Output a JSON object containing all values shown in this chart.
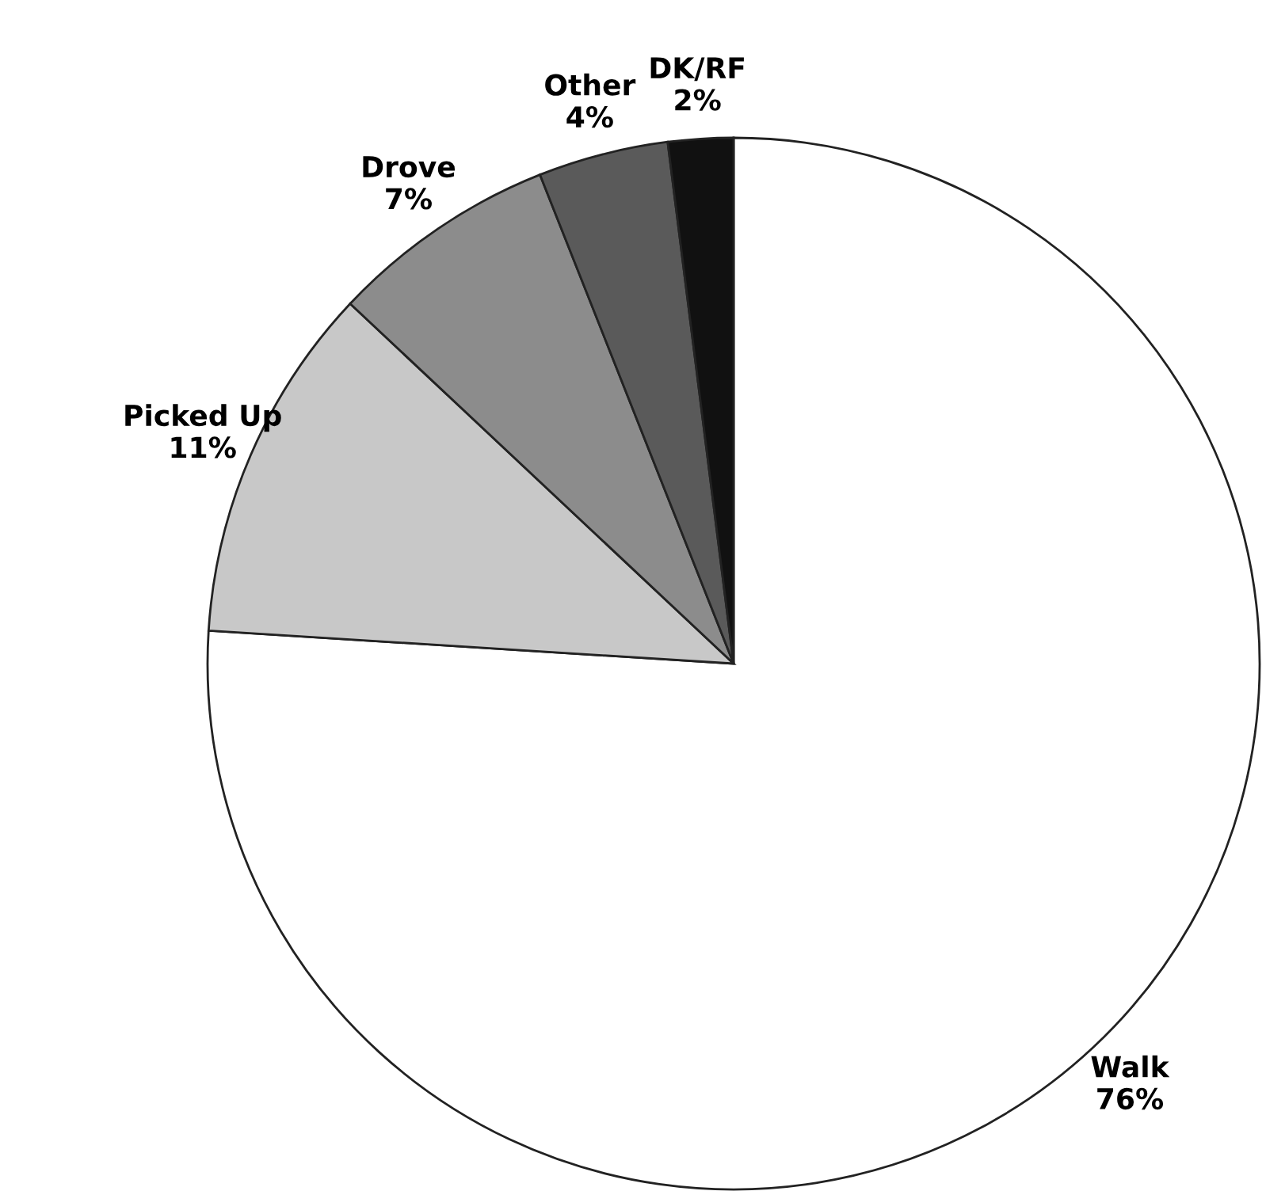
{
  "chart_data": {
    "type": "pie",
    "categories": [
      "Walk",
      "Picked Up",
      "Drove",
      "Other",
      "DK/RF"
    ],
    "values": [
      76,
      11,
      7,
      4,
      2
    ],
    "value_labels": [
      "76%",
      "11%",
      "7%",
      "4%",
      "2%"
    ],
    "colors": [
      "#ffffff",
      "#c8c8c8",
      "#8c8c8c",
      "#5a5a5a",
      "#111111"
    ]
  }
}
